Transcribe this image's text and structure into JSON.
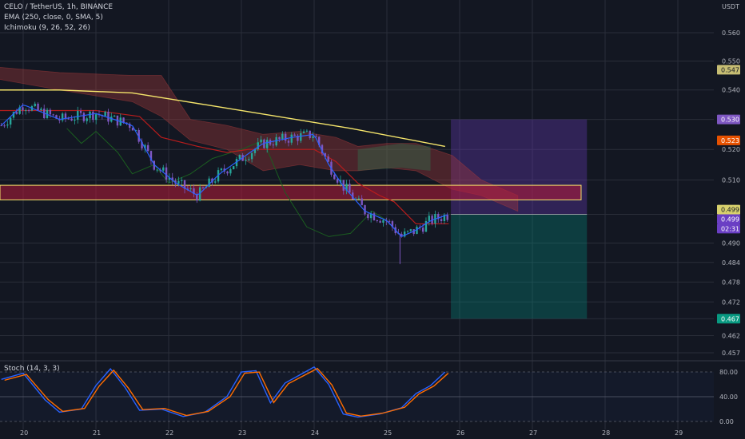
{
  "legend": {
    "symbol": "CELO / TetherUS, 1h, BINANCE",
    "ema": "EMA (250, close, 0, SMA, 5)",
    "ichimoku": "Ichimoku (9, 26, 52, 26)",
    "stoch": "Stoch (14, 3, 3)"
  },
  "currency": "USDT",
  "price_tags": [
    {
      "text": "0.547",
      "bg": "#c6bd73",
      "fg": "#131722"
    },
    {
      "text": "0.530",
      "bg": "#7e57c2",
      "fg": "#ffffff"
    },
    {
      "text": "0.523",
      "bg": "#e65100",
      "fg": "#ffffff"
    },
    {
      "text": "0.499",
      "bg": "#d8d16d",
      "fg": "#131722"
    },
    {
      "text": "0.499",
      "bg": "#6a3fc4",
      "fg": "#ffffff"
    },
    {
      "text": "02:31",
      "bg": "#6a3fc4",
      "fg": "#ffffff"
    },
    {
      "text": "0.467",
      "bg": "#089981",
      "fg": "#ffffff"
    }
  ],
  "colors": {
    "background": "#131722",
    "grid": "#2a2e39",
    "ema": "#f5e56b",
    "conversion": "#2962ff",
    "base": "#b71c1c",
    "lagging": "#1b5e20",
    "up": "#26a69a",
    "down": "#7e57c2",
    "stoch_k": "#2962ff",
    "stoch_d": "#ff6d00",
    "target_zone": "#009688",
    "stop_zone": "#673ab7",
    "resistance_zone": "#b71c3a"
  },
  "chart_data": [
    {
      "type": "candlestick",
      "title": "CELO / TetherUS, 1h, BINANCE",
      "ylabel": "USDT",
      "y_scale": "log",
      "ylim": [
        0.452,
        0.566
      ],
      "y_ticks": [
        "0.560",
        "0.550",
        "0.540",
        "0.530",
        "0.520",
        "0.510",
        "0.499",
        "0.490",
        "0.484",
        "0.478",
        "0.472",
        "0.467",
        "0.462",
        "0.457"
      ],
      "x_ticks": [
        "20",
        "21",
        "22",
        "23",
        "24",
        "25",
        "26",
        "27",
        "28",
        "29"
      ],
      "ema_250_approx": [
        [
          19.6,
          0.54
        ],
        [
          20.5,
          0.54
        ],
        [
          21.5,
          0.539
        ],
        [
          22.5,
          0.535
        ],
        [
          23.5,
          0.531
        ],
        [
          24.5,
          0.527
        ],
        [
          25.8,
          0.521
        ]
      ],
      "close_approx": [
        [
          19.7,
          0.528
        ],
        [
          20.0,
          0.535
        ],
        [
          20.5,
          0.53
        ],
        [
          21.0,
          0.532
        ],
        [
          21.5,
          0.528
        ],
        [
          21.8,
          0.515
        ],
        [
          22.1,
          0.509
        ],
        [
          22.4,
          0.505
        ],
        [
          22.7,
          0.512
        ],
        [
          23.0,
          0.517
        ],
        [
          23.3,
          0.522
        ],
        [
          23.7,
          0.524
        ],
        [
          24.0,
          0.525
        ],
        [
          24.2,
          0.515
        ],
        [
          24.4,
          0.508
        ],
        [
          24.7,
          0.5
        ],
        [
          25.0,
          0.497
        ],
        [
          25.2,
          0.492
        ],
        [
          25.4,
          0.494
        ],
        [
          25.6,
          0.497
        ],
        [
          25.85,
          0.499
        ]
      ],
      "positions": [
        {
          "kind": "short",
          "stop": 0.53,
          "entry": 0.499,
          "target": 0.467
        }
      ],
      "zones": [
        {
          "kind": "resistance",
          "from": 0.5036,
          "to": 0.5083
        }
      ],
      "legend": [
        "EMA (250, close, 0, SMA, 5)",
        "Ichimoku (9, 26, 52, 26)"
      ]
    },
    {
      "type": "line",
      "title": "Stoch (14, 3, 3)",
      "ylim": [
        0,
        100
      ],
      "y_ticks": [
        "80.00",
        "40.00",
        "0.00"
      ],
      "series": [
        {
          "values_approx": [
            [
              19.7,
              68
            ],
            [
              20.0,
              78
            ],
            [
              20.3,
              35
            ],
            [
              20.5,
              15
            ],
            [
              20.8,
              20
            ],
            [
              21.0,
              58
            ],
            [
              21.2,
              85
            ],
            [
              21.4,
              55
            ],
            [
              21.6,
              18
            ],
            [
              21.9,
              20
            ],
            [
              22.2,
              8
            ],
            [
              22.5,
              15
            ],
            [
              22.8,
              40
            ],
            [
              23.0,
              80
            ],
            [
              23.2,
              82
            ],
            [
              23.4,
              30
            ],
            [
              23.6,
              62
            ],
            [
              23.8,
              75
            ],
            [
              24.0,
              88
            ],
            [
              24.2,
              60
            ],
            [
              24.4,
              12
            ],
            [
              24.6,
              7
            ],
            [
              24.9,
              12
            ],
            [
              25.2,
              22
            ],
            [
              25.4,
              45
            ],
            [
              25.6,
              58
            ],
            [
              25.8,
              80
            ]
          ]
        }
      ]
    }
  ]
}
